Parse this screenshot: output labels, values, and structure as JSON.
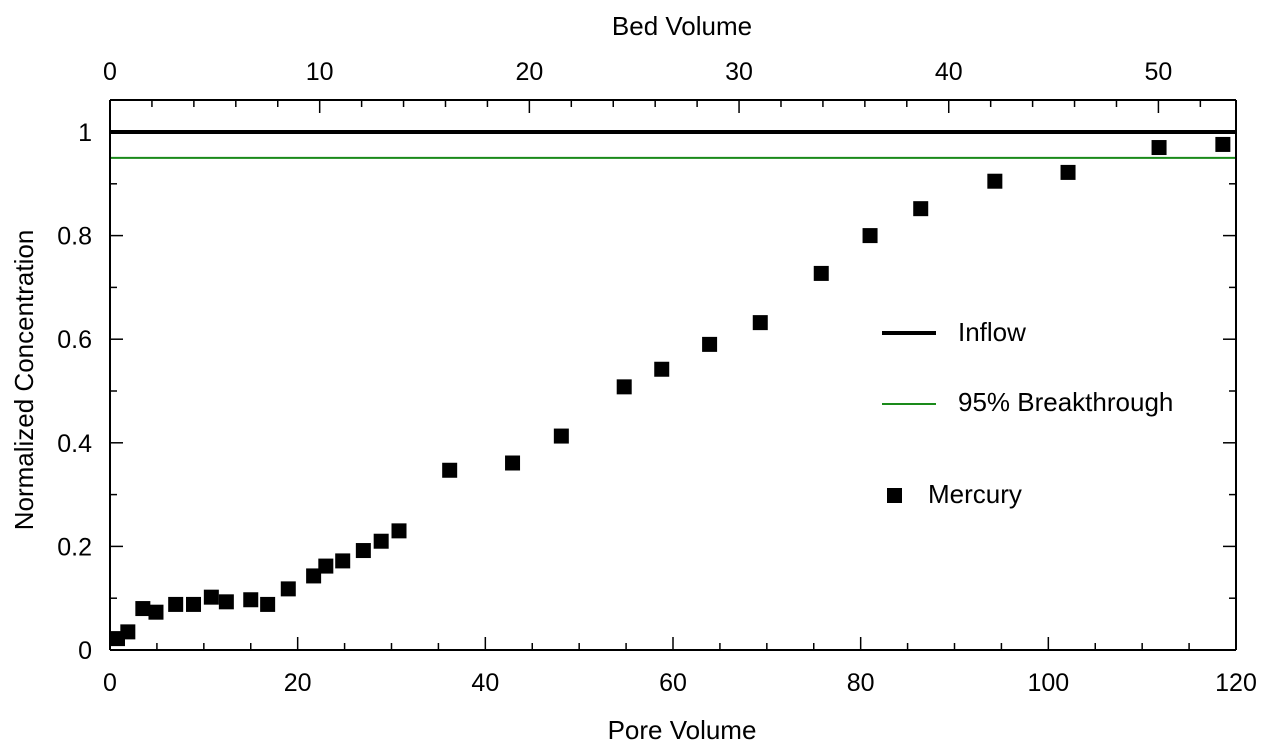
{
  "chart_data": {
    "type": "scatter",
    "xlabel": "Pore Volume",
    "ylabel": "Normalized Concentration",
    "top_xlabel": "Bed Volume",
    "xlim": [
      0,
      120
    ],
    "ylim": [
      0,
      1.05
    ],
    "top_xlim": [
      0,
      53.7
    ],
    "x_ticks": [
      "0",
      "20",
      "40",
      "60",
      "80",
      "100",
      "120"
    ],
    "y_ticks": [
      "0",
      "0.2",
      "0.4",
      "0.6",
      "0.8",
      "1"
    ],
    "top_x_ticks": [
      "0",
      "10",
      "20",
      "30",
      "40",
      "50"
    ],
    "grid": false,
    "legend_position": "right",
    "lines": [
      {
        "name": "Inflow",
        "y": 1.0,
        "color": "#000000"
      },
      {
        "name": "95% Breakthrough",
        "y": 0.95,
        "color": "#1a8a1a"
      }
    ],
    "series": [
      {
        "name": "Mercury",
        "marker": "square",
        "color": "#000000",
        "points": [
          [
            0.8,
            0.022
          ],
          [
            1.9,
            0.035
          ],
          [
            3.5,
            0.08
          ],
          [
            4.9,
            0.073
          ],
          [
            7.0,
            0.088
          ],
          [
            8.9,
            0.088
          ],
          [
            10.8,
            0.102
          ],
          [
            12.4,
            0.093
          ],
          [
            15.0,
            0.097
          ],
          [
            16.8,
            0.088
          ],
          [
            19.0,
            0.118
          ],
          [
            21.7,
            0.143
          ],
          [
            23.0,
            0.162
          ],
          [
            24.8,
            0.172
          ],
          [
            27.0,
            0.192
          ],
          [
            28.9,
            0.21
          ],
          [
            30.8,
            0.23
          ],
          [
            36.2,
            0.347
          ],
          [
            42.9,
            0.361
          ],
          [
            48.1,
            0.413
          ],
          [
            54.8,
            0.508
          ],
          [
            58.8,
            0.542
          ],
          [
            63.9,
            0.59
          ],
          [
            69.3,
            0.632
          ],
          [
            75.8,
            0.727
          ],
          [
            81.0,
            0.8
          ],
          [
            86.4,
            0.852
          ],
          [
            94.3,
            0.905
          ],
          [
            102.1,
            0.922
          ],
          [
            111.8,
            0.97
          ],
          [
            118.6,
            0.976
          ]
        ]
      }
    ]
  }
}
